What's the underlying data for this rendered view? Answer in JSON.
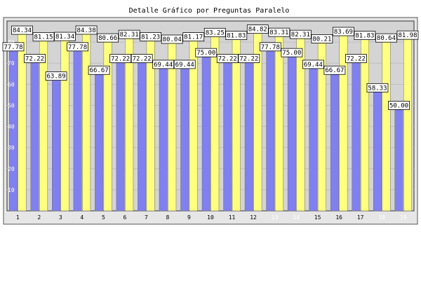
{
  "title": "Detalle Gráfico por Preguntas Paralelo",
  "colors": {
    "series_1": "#8080f0",
    "series_2": "#ffff80",
    "plot_background": "#d4d4d4",
    "frame": "#e6e6e6",
    "grid": "#c0c0c0",
    "category_label_dim": "#ffffff"
  },
  "chart_data": {
    "type": "bar",
    "title": "Detalle Gráfico por Preguntas Paralelo",
    "xlabel": "",
    "ylabel": "",
    "ylim": [
      0,
      90
    ],
    "yticks": [
      10,
      20,
      30,
      40,
      50,
      60,
      70,
      80
    ],
    "grid": true,
    "legend": "none",
    "categories": [
      "1",
      "2",
      "3",
      "4",
      "5",
      "6",
      "7",
      "8",
      "9",
      "10",
      "11",
      "12",
      "13",
      "14",
      "15",
      "16",
      "17",
      "18",
      "19"
    ],
    "series": [
      {
        "values": [
          77.78,
          72.22,
          63.89,
          77.78,
          66.67,
          72.22,
          72.22,
          69.44,
          69.44,
          75.0,
          72.22,
          72.22,
          77.78,
          75.0,
          69.44,
          66.67,
          72.22,
          58.33,
          50.0
        ],
        "labels": [
          "77.78",
          "72.22",
          "63.89",
          "77.78",
          "66.67",
          "72.22",
          "72.22",
          "69.44",
          "69.44",
          "75.00",
          "72.22",
          "72.22",
          "77.78",
          "75.00",
          "69.44",
          "66.67",
          "72.22",
          "58.33",
          "50.00"
        ]
      },
      {
        "values": [
          84.34,
          81.15,
          81.34,
          84.38,
          80.66,
          82.31,
          81.23,
          80.04,
          81.17,
          83.25,
          81.83,
          84.82,
          83.31,
          82.31,
          80.21,
          83.69,
          81.83,
          80.64,
          81.98
        ],
        "labels": [
          "84.34",
          "81.15",
          "81.34",
          "84.38",
          "80.66",
          "82.31",
          "81.23",
          "80.04",
          "81.17",
          "83.25",
          "81.83",
          "84.82",
          "83.31",
          "82.31",
          "80.21",
          "83.69",
          "81.83",
          "80.64",
          "81.98"
        ]
      }
    ],
    "dimmed_categories": [
      "13",
      "14",
      "18",
      "19"
    ]
  }
}
